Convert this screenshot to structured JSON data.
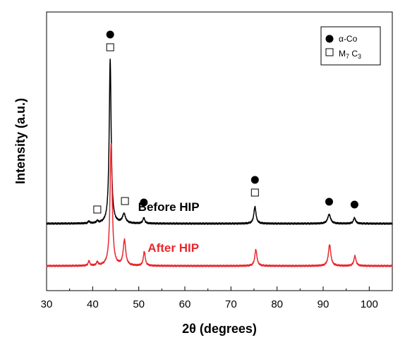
{
  "chart_data": {
    "type": "line",
    "xlabel": "2θ (degrees)",
    "ylabel": "Intensity (a.u.)",
    "xlim": [
      30,
      105
    ],
    "x_ticks": [
      "30",
      "40",
      "50",
      "60",
      "70",
      "80",
      "90",
      "100"
    ],
    "y_ticks_shown": false,
    "legend": {
      "placement": "top-right",
      "entries": [
        {
          "marker": "filled-circle",
          "label": "α-Co"
        },
        {
          "marker": "open-square",
          "label": "M",
          "sub1": "7",
          "mid": " C",
          "sub2": "3"
        }
      ]
    },
    "series": [
      {
        "name": "Before HIP",
        "color": "#000000",
        "baseline": 0,
        "peaks": [
          {
            "x": 39.2,
            "h": 0.03,
            "w": 0.2
          },
          {
            "x": 41.0,
            "h": 0.03,
            "w": 0.2
          },
          {
            "x": 43.8,
            "h": 2.33,
            "w": 0.25
          },
          {
            "x": 46.8,
            "h": 0.13,
            "w": 0.4
          },
          {
            "x": 51.1,
            "h": 0.08,
            "w": 0.25
          },
          {
            "x": 75.2,
            "h": 0.24,
            "w": 0.28
          },
          {
            "x": 91.3,
            "h": 0.13,
            "w": 0.38
          },
          {
            "x": 96.8,
            "h": 0.08,
            "w": 0.28
          }
        ]
      },
      {
        "name": "After HIP",
        "color": "#e8282e",
        "baseline": -0.6,
        "peaks": [
          {
            "x": 39.2,
            "h": 0.07,
            "w": 0.2
          },
          {
            "x": 41.0,
            "h": 0.05,
            "w": 0.2
          },
          {
            "x": 44.0,
            "h": 1.73,
            "w": 0.28
          },
          {
            "x": 46.9,
            "h": 0.36,
            "w": 0.32
          },
          {
            "x": 51.2,
            "h": 0.2,
            "w": 0.25
          },
          {
            "x": 75.4,
            "h": 0.23,
            "w": 0.28
          },
          {
            "x": 91.4,
            "h": 0.3,
            "w": 0.32
          },
          {
            "x": 96.9,
            "h": 0.14,
            "w": 0.28
          }
        ]
      }
    ],
    "annotations": [
      {
        "type": "circle",
        "x": 43.8,
        "y": 2.68
      },
      {
        "type": "square",
        "x": 43.8,
        "y": 2.5
      },
      {
        "type": "square",
        "x": 41.0,
        "y": 0.2
      },
      {
        "type": "square",
        "x": 47.0,
        "y": 0.32
      },
      {
        "type": "circle",
        "x": 51.1,
        "y": 0.3
      },
      {
        "type": "circle",
        "x": 75.2,
        "y": 0.62
      },
      {
        "type": "square",
        "x": 75.2,
        "y": 0.44
      },
      {
        "type": "circle",
        "x": 91.3,
        "y": 0.31
      },
      {
        "type": "circle",
        "x": 96.8,
        "y": 0.27
      }
    ],
    "curve_labels": [
      {
        "text": "Before HIP",
        "color": "#000000",
        "x": 56.5,
        "y": 0.18
      },
      {
        "text": "After HIP",
        "color": "#e8282e",
        "x": 57.5,
        "y": -0.4
      }
    ]
  }
}
